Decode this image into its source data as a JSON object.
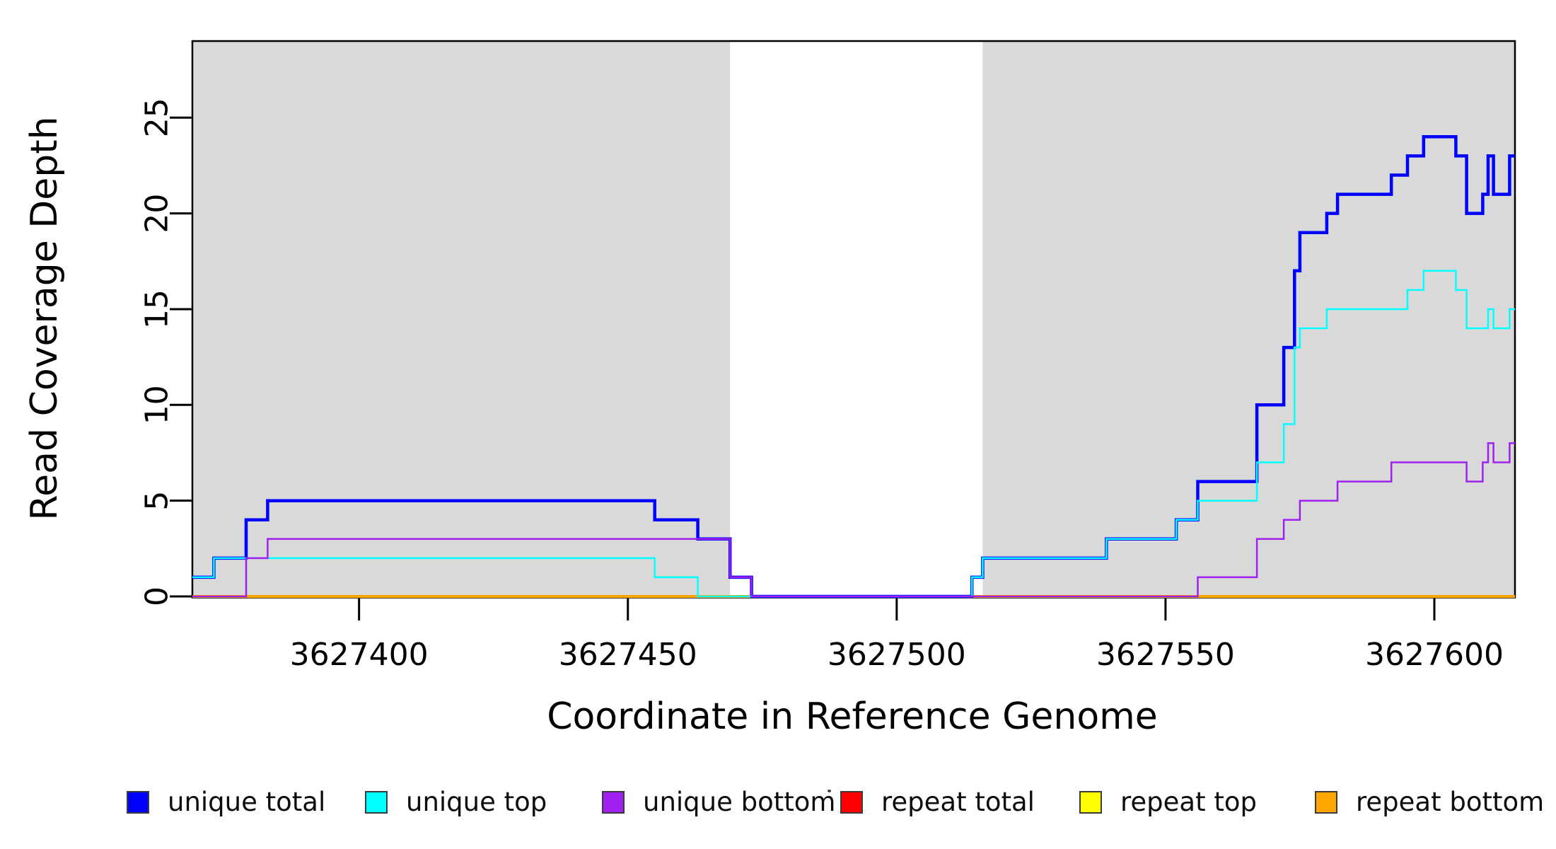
{
  "figure": {
    "background": "#ffffff",
    "plot_box_color": "#000000",
    "shade_color": "#d9d9d9"
  },
  "chart_data": {
    "type": "line",
    "subtype": "step-coverage",
    "title": "",
    "xlabel": "Coordinate in Reference Genome",
    "ylabel": "Read Coverage Depth",
    "xlim": [
      3627369,
      3627615
    ],
    "ylim": [
      0,
      29
    ],
    "x_ticks": [
      3627400,
      3627450,
      3627500,
      3627550,
      3627600
    ],
    "y_ticks": [
      0,
      5,
      10,
      15,
      20,
      25
    ],
    "grid": false,
    "legend_position": "bottom",
    "shaded_regions": {
      "color": "#d9d9d9",
      "ranges": [
        [
          3627369,
          3627469
        ],
        [
          3627516,
          3627615
        ]
      ]
    },
    "series": [
      {
        "id": "repeat-total",
        "name": "repeat total",
        "color": "#FF0000",
        "width": 4,
        "steps": [
          [
            3627369,
            0
          ]
        ]
      },
      {
        "id": "repeat-top",
        "name": "repeat top",
        "color": "#FFFF00",
        "width": 4,
        "steps": [
          [
            3627369,
            0
          ]
        ]
      },
      {
        "id": "repeat-bottom",
        "name": "repeat bottom",
        "color": "#FFA500",
        "width": 4,
        "steps": [
          [
            3627369,
            0
          ]
        ]
      },
      {
        "id": "unique-total",
        "name": "unique total",
        "color": "#0000FF",
        "width": 4.5,
        "steps": [
          [
            3627369,
            1
          ],
          [
            3627373,
            2
          ],
          [
            3627379,
            4
          ],
          [
            3627383,
            5
          ],
          [
            3627455,
            4
          ],
          [
            3627463,
            3
          ],
          [
            3627469,
            1
          ],
          [
            3627473,
            0
          ],
          [
            3627514,
            1
          ],
          [
            3627516,
            2
          ],
          [
            3627539,
            3
          ],
          [
            3627552,
            4
          ],
          [
            3627556,
            6
          ],
          [
            3627567,
            10
          ],
          [
            3627572,
            13
          ],
          [
            3627574,
            17
          ],
          [
            3627575,
            19
          ],
          [
            3627580,
            20
          ],
          [
            3627582,
            21
          ],
          [
            3627592,
            22
          ],
          [
            3627595,
            23
          ],
          [
            3627598,
            24
          ],
          [
            3627604,
            23
          ],
          [
            3627606,
            20
          ],
          [
            3627609,
            21
          ],
          [
            3627610,
            23
          ],
          [
            3627611,
            21
          ],
          [
            3627614,
            23
          ]
        ]
      },
      {
        "id": "unique-top",
        "name": "unique top",
        "color": "#00FFFF",
        "width": 2.5,
        "steps": [
          [
            3627369,
            1
          ],
          [
            3627373,
            2
          ],
          [
            3627455,
            1
          ],
          [
            3627463,
            0
          ],
          [
            3627514,
            1
          ],
          [
            3627516,
            2
          ],
          [
            3627539,
            3
          ],
          [
            3627552,
            4
          ],
          [
            3627556,
            5
          ],
          [
            3627567,
            7
          ],
          [
            3627572,
            9
          ],
          [
            3627574,
            13
          ],
          [
            3627575,
            14
          ],
          [
            3627580,
            15
          ],
          [
            3627595,
            16
          ],
          [
            3627598,
            17
          ],
          [
            3627604,
            16
          ],
          [
            3627606,
            14
          ],
          [
            3627610,
            15
          ],
          [
            3627611,
            14
          ],
          [
            3627614,
            15
          ]
        ]
      },
      {
        "id": "unique-bottom",
        "name": "unique bottom",
        "color": "#A020F0",
        "width": 2.5,
        "steps": [
          [
            3627369,
            0
          ],
          [
            3627379,
            2
          ],
          [
            3627383,
            3
          ],
          [
            3627469,
            1
          ],
          [
            3627473,
            0
          ],
          [
            3627556,
            1
          ],
          [
            3627567,
            3
          ],
          [
            3627572,
            4
          ],
          [
            3627575,
            5
          ],
          [
            3627582,
            6
          ],
          [
            3627592,
            7
          ],
          [
            3627606,
            6
          ],
          [
            3627609,
            7
          ],
          [
            3627610,
            8
          ],
          [
            3627611,
            7
          ],
          [
            3627614,
            8
          ]
        ]
      }
    ],
    "legend": {
      "items": [
        {
          "label": "unique total",
          "color": "#0000FF"
        },
        {
          "label": "unique top",
          "color": "#00FFFF"
        },
        {
          "label": "unique bottom",
          "color": "#A020F0"
        },
        {
          "label": "repeat total",
          "color": "#FF0000"
        },
        {
          "label": "repeat top",
          "color": "#FFFF00"
        },
        {
          "label": "repeat bottom",
          "color": "#FFA500"
        }
      ]
    }
  }
}
